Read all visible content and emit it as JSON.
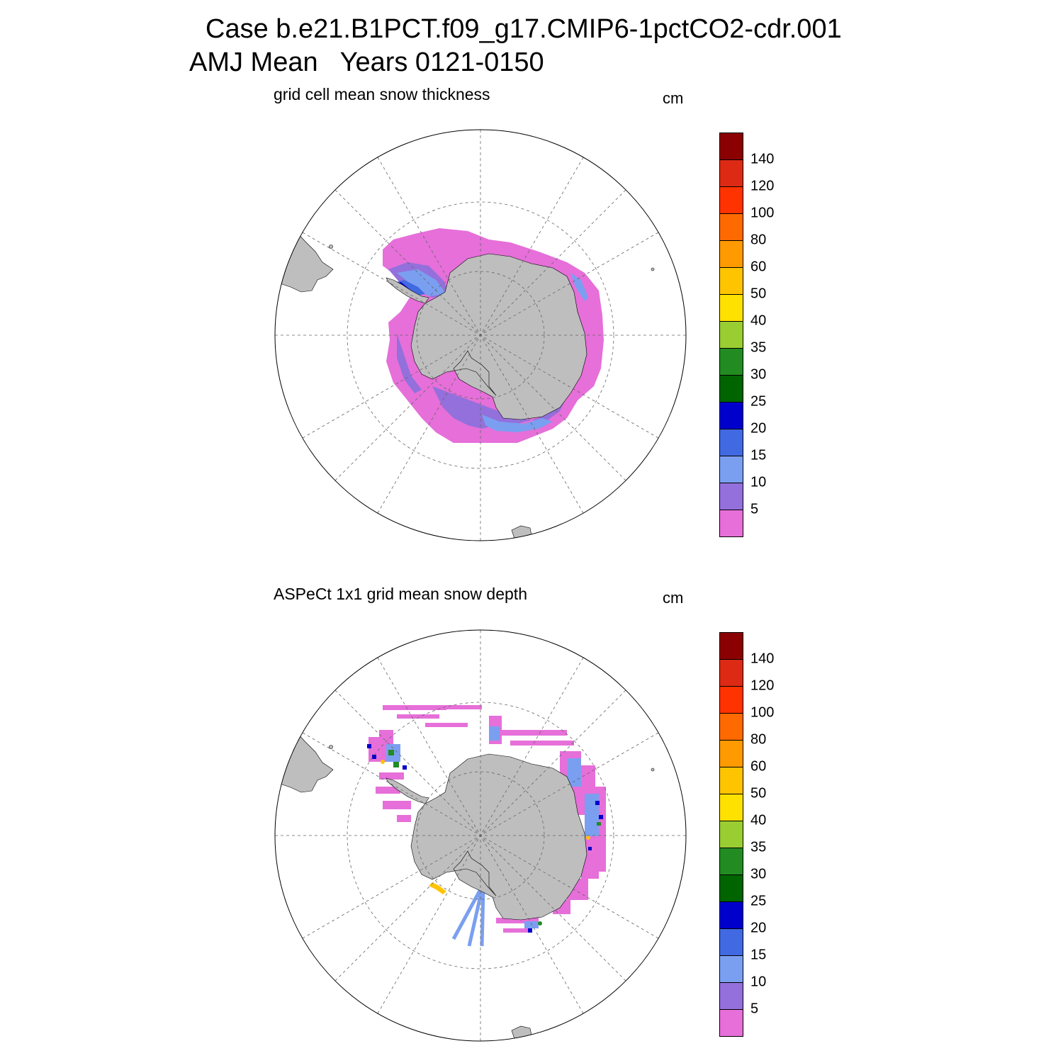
{
  "header": {
    "line1": "Case b.e21.B1PCT.f09_g17.CMIP6-1pctCO2-cdr.001",
    "line2": "AMJ Mean   Years 0121-0150"
  },
  "colors": {
    "land": "#bebebe",
    "scale": [
      "#e66fd9",
      "#9370db",
      "#7b9ff0",
      "#4169e1",
      "#0000cd",
      "#006400",
      "#228b22",
      "#9acd32",
      "#ffe100",
      "#ffc400",
      "#ff9a00",
      "#ff6a00",
      "#ff3300",
      "#dc2a14",
      "#8b0000"
    ]
  },
  "colorbar": {
    "ticks": [
      "5",
      "10",
      "15",
      "20",
      "25",
      "30",
      "35",
      "40",
      "50",
      "60",
      "80",
      "100",
      "120",
      "140"
    ]
  },
  "panels": [
    {
      "title": "grid cell mean snow thickness",
      "unit": "cm"
    },
    {
      "title": "ASPeCt 1x1 grid mean snow depth",
      "unit": "cm"
    }
  ]
}
